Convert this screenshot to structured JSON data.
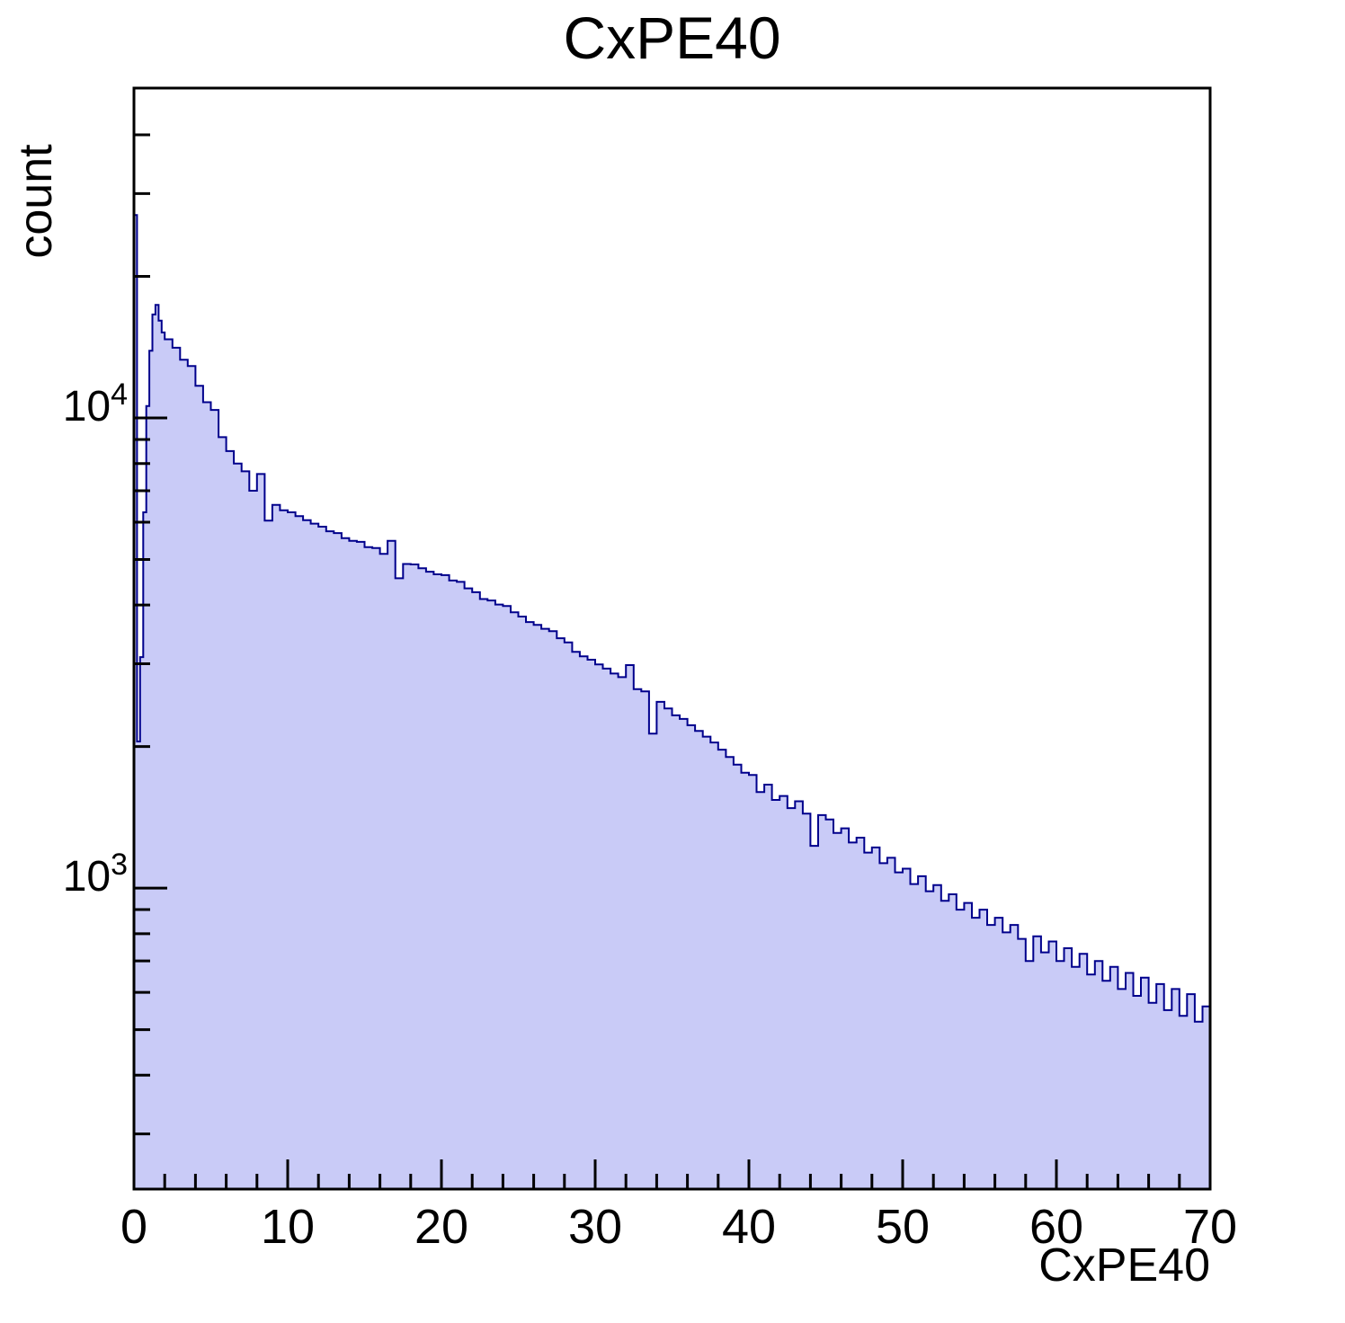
{
  "title": "CxPE40",
  "chart_data": {
    "type": "bar",
    "subtype": "step-histogram",
    "title": "CxPE40",
    "xlabel": "CxPE40",
    "ylabel": "count",
    "xlim": [
      0,
      70
    ],
    "ylim": [
      229,
      50300
    ],
    "log_y": true,
    "grid": false,
    "legend_position": "none",
    "x_major_ticks": [
      0,
      10,
      20,
      30,
      40,
      50,
      60,
      70
    ],
    "x_minor_ticks": [
      2,
      4,
      6,
      8,
      12,
      14,
      16,
      18,
      22,
      24,
      26,
      28,
      32,
      34,
      36,
      38,
      42,
      44,
      46,
      48,
      52,
      54,
      56,
      58,
      62,
      64,
      66,
      68
    ],
    "y_major_ticks": [
      {
        "value": 1000,
        "base": "10",
        "exp": "3"
      },
      {
        "value": 10000,
        "base": "10",
        "exp": "4"
      }
    ],
    "y_minor_ticks": [
      300,
      400,
      500,
      600,
      700,
      800,
      900,
      2000,
      3000,
      4000,
      5000,
      6000,
      7000,
      8000,
      9000,
      20000,
      30000,
      40000
    ],
    "colors": {
      "fill": "#c9cbf7",
      "line": "#00008c",
      "frame": "#000000",
      "text": "#000000",
      "background": "#ffffff"
    },
    "bin_edges": [
      0,
      0.2,
      0.4,
      0.6,
      0.8,
      1,
      1.2,
      1.4,
      1.6,
      1.8,
      2,
      2.5,
      3,
      3.5,
      4,
      4.5,
      5,
      5.5,
      6,
      6.5,
      7,
      7.5,
      8,
      8.5,
      9,
      9.5,
      10,
      10.5,
      11,
      11.5,
      12,
      12.5,
      13,
      13.5,
      14,
      14.5,
      15,
      15.5,
      16,
      16.5,
      17,
      17.5,
      18,
      18.5,
      19,
      19.5,
      20,
      20.5,
      21,
      21.5,
      22,
      22.5,
      23,
      23.5,
      24,
      24.5,
      25,
      25.5,
      26,
      26.5,
      27,
      27.5,
      28,
      28.5,
      29,
      29.5,
      30,
      30.5,
      31,
      31.5,
      32,
      32.5,
      33,
      33.5,
      34,
      34.5,
      35,
      35.5,
      36,
      36.5,
      37,
      37.5,
      38,
      38.5,
      39,
      39.5,
      40,
      40.5,
      41,
      41.5,
      42,
      42.5,
      43,
      43.5,
      44,
      44.5,
      45,
      45.5,
      46,
      46.5,
      47,
      47.5,
      48,
      48.5,
      49,
      49.5,
      50,
      50.5,
      51,
      51.5,
      52,
      52.5,
      53,
      53.5,
      54,
      54.5,
      55,
      55.5,
      56,
      56.5,
      57,
      57.5,
      58,
      58.5,
      59,
      59.5,
      60,
      60.5,
      61,
      61.5,
      62,
      62.5,
      63,
      63.5,
      64,
      64.5,
      65,
      65.5,
      66,
      66.5,
      67,
      67.5,
      68,
      68.5,
      69,
      69.5,
      70
    ],
    "counts": [
      27000,
      2050,
      3100,
      6300,
      10600,
      13900,
      16600,
      17400,
      16100,
      15200,
      14700,
      14100,
      13300,
      12900,
      11700,
      10800,
      10400,
      9100,
      8500,
      8000,
      7700,
      7000,
      7600,
      6050,
      6530,
      6360,
      6300,
      6180,
      6060,
      5960,
      5870,
      5740,
      5690,
      5550,
      5480,
      5450,
      5310,
      5290,
      5140,
      5480,
      4560,
      4890,
      4880,
      4790,
      4710,
      4650,
      4630,
      4510,
      4480,
      4340,
      4260,
      4120,
      4090,
      4010,
      3980,
      3860,
      3780,
      3680,
      3630,
      3560,
      3520,
      3400,
      3330,
      3180,
      3110,
      3060,
      2990,
      2930,
      2860,
      2810,
      2980,
      2650,
      2620,
      2130,
      2490,
      2410,
      2330,
      2290,
      2220,
      2160,
      2100,
      2040,
      1970,
      1900,
      1830,
      1760,
      1740,
      1600,
      1660,
      1540,
      1570,
      1480,
      1530,
      1440,
      1230,
      1430,
      1400,
      1310,
      1340,
      1250,
      1280,
      1190,
      1220,
      1130,
      1160,
      1080,
      1100,
      1020,
      1060,
      985,
      1015,
      940,
      970,
      900,
      930,
      865,
      900,
      835,
      865,
      805,
      835,
      780,
      700,
      790,
      730,
      770,
      700,
      745,
      680,
      725,
      655,
      700,
      635,
      680,
      610,
      660,
      590,
      645,
      570,
      625,
      550,
      610,
      535,
      595,
      520,
      560
    ]
  }
}
